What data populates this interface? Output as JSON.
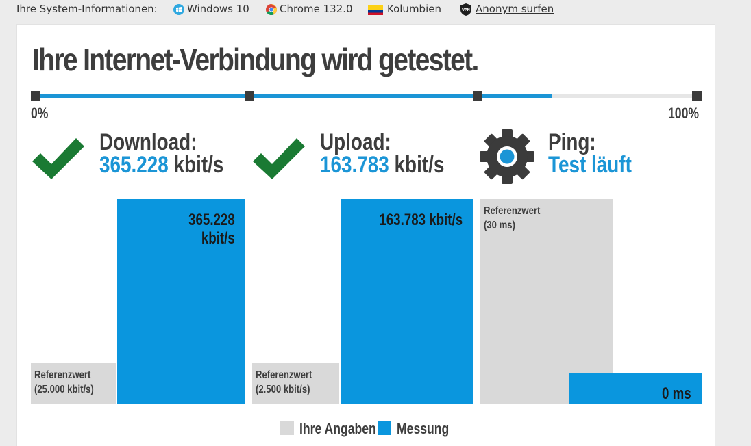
{
  "system_info": {
    "label": "Ihre System-Informationen:",
    "os": "Windows 10",
    "browser": "Chrome 132.0",
    "country": "Kolumbien",
    "anonymous_link": "Anonym surfen",
    "icons": [
      "windows-icon",
      "chrome-icon",
      "colombia-flag-icon",
      "vpn-icon"
    ]
  },
  "title": "Ihre Internet-Verbindung wird getestet.",
  "progress": {
    "value_percent": 78,
    "start_label": "0%",
    "end_label": "100%"
  },
  "metrics": {
    "download": {
      "label": "Download:",
      "value": "365.228",
      "unit": "kbit/s",
      "status_icon": "check-icon"
    },
    "upload": {
      "label": "Upload:",
      "value": "163.783",
      "unit": "kbit/s",
      "status_icon": "check-icon"
    },
    "ping": {
      "label": "Ping:",
      "status": "Test läuft",
      "status_icon": "gear-icon"
    }
  },
  "bars": {
    "download": {
      "reference_line1": "Referenzwert",
      "reference_line2": "(25.000 kbit/s)",
      "measured_line1": "365.228",
      "measured_line2": "kbit/s",
      "reference_fraction": 0.2,
      "measured_fraction": 1.0
    },
    "upload": {
      "reference_line1": "Referenzwert",
      "reference_line2": "(2.500 kbit/s)",
      "measured_text": "163.783 kbit/s",
      "reference_fraction": 0.2,
      "measured_fraction": 1.0
    },
    "ping": {
      "reference_line1": "Referenzwert",
      "reference_line2": "(30 ms)",
      "measured_text": "0 ms",
      "reference_fraction": 1.0,
      "measured_fraction": 0.15
    }
  },
  "legend": {
    "yours": "Ihre Angaben",
    "measured": "Messung"
  },
  "colors": {
    "accent": "#1b95d6",
    "bar_blue": "#0a96de",
    "bar_grey": "#d9d9d9",
    "check_green": "#1a7a33",
    "text_dark": "#3d3d3d"
  }
}
